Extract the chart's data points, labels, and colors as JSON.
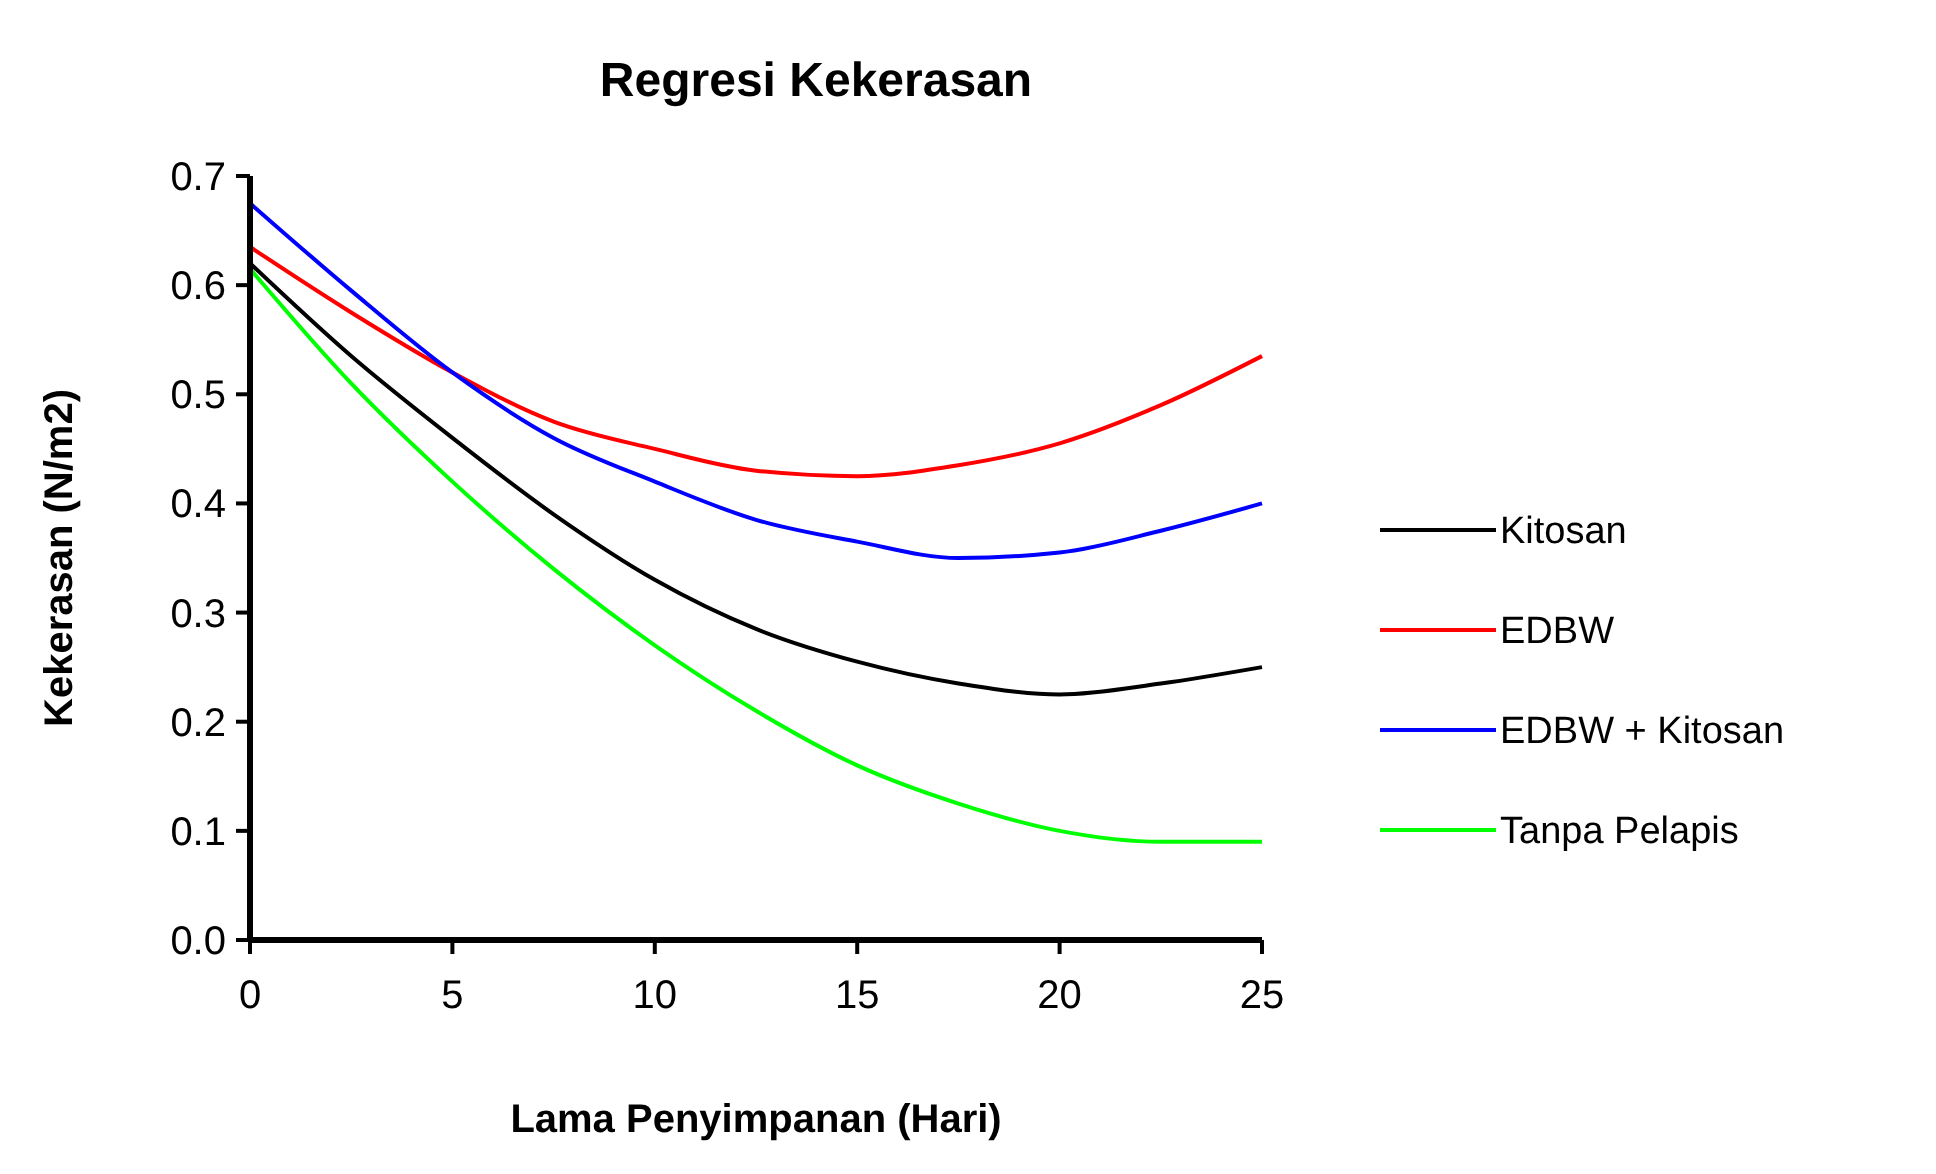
{
  "chart_data": {
    "type": "line",
    "title": "Regresi Kekerasan",
    "xlabel": "Lama Penyimpanan (Hari)",
    "ylabel": "Kekerasan (N/m2)",
    "series": [
      {
        "name": "Kitosan",
        "color": "#000000",
        "x": [
          0,
          2.5,
          5,
          7.5,
          10,
          12.5,
          15,
          17.5,
          20,
          22.5,
          25
        ],
        "values": [
          0.62,
          0.535,
          0.46,
          0.39,
          0.33,
          0.285,
          0.255,
          0.235,
          0.225,
          0.235,
          0.25
        ]
      },
      {
        "name": "EDBW",
        "color": "#ff0000",
        "x": [
          0,
          2.5,
          5,
          7.5,
          10,
          12.5,
          15,
          17.5,
          20,
          22.5,
          25
        ],
        "values": [
          0.635,
          0.575,
          0.52,
          0.475,
          0.45,
          0.43,
          0.425,
          0.435,
          0.455,
          0.49,
          0.535
        ]
      },
      {
        "name": "EDBW + Kitosan",
        "color": "#0000ff",
        "x": [
          0,
          2.5,
          5,
          7.5,
          10,
          12.5,
          15,
          17.5,
          20,
          22.5,
          25
        ],
        "values": [
          0.675,
          0.595,
          0.52,
          0.46,
          0.42,
          0.385,
          0.365,
          0.35,
          0.355,
          0.375,
          0.4
        ]
      },
      {
        "name": "Tanpa Pelapis",
        "color": "#00ff00",
        "x": [
          0,
          2.5,
          5,
          7.5,
          10,
          12.5,
          15,
          17.5,
          20,
          22.5,
          25
        ],
        "values": [
          0.615,
          0.51,
          0.42,
          0.34,
          0.27,
          0.21,
          0.16,
          0.125,
          0.1,
          0.09,
          0.09
        ]
      }
    ],
    "xlim": [
      0,
      25
    ],
    "xticks": [
      0,
      5,
      10,
      15,
      20,
      25
    ],
    "ylim": [
      0,
      0.7
    ],
    "yticks": [
      {
        "value": 0,
        "label": "0.0"
      },
      0.1,
      0.2,
      0.3,
      0.4,
      0.5,
      0.6,
      0.7
    ],
    "legend": "right",
    "marker": "none",
    "line_style": "solid",
    "grid": false
  }
}
